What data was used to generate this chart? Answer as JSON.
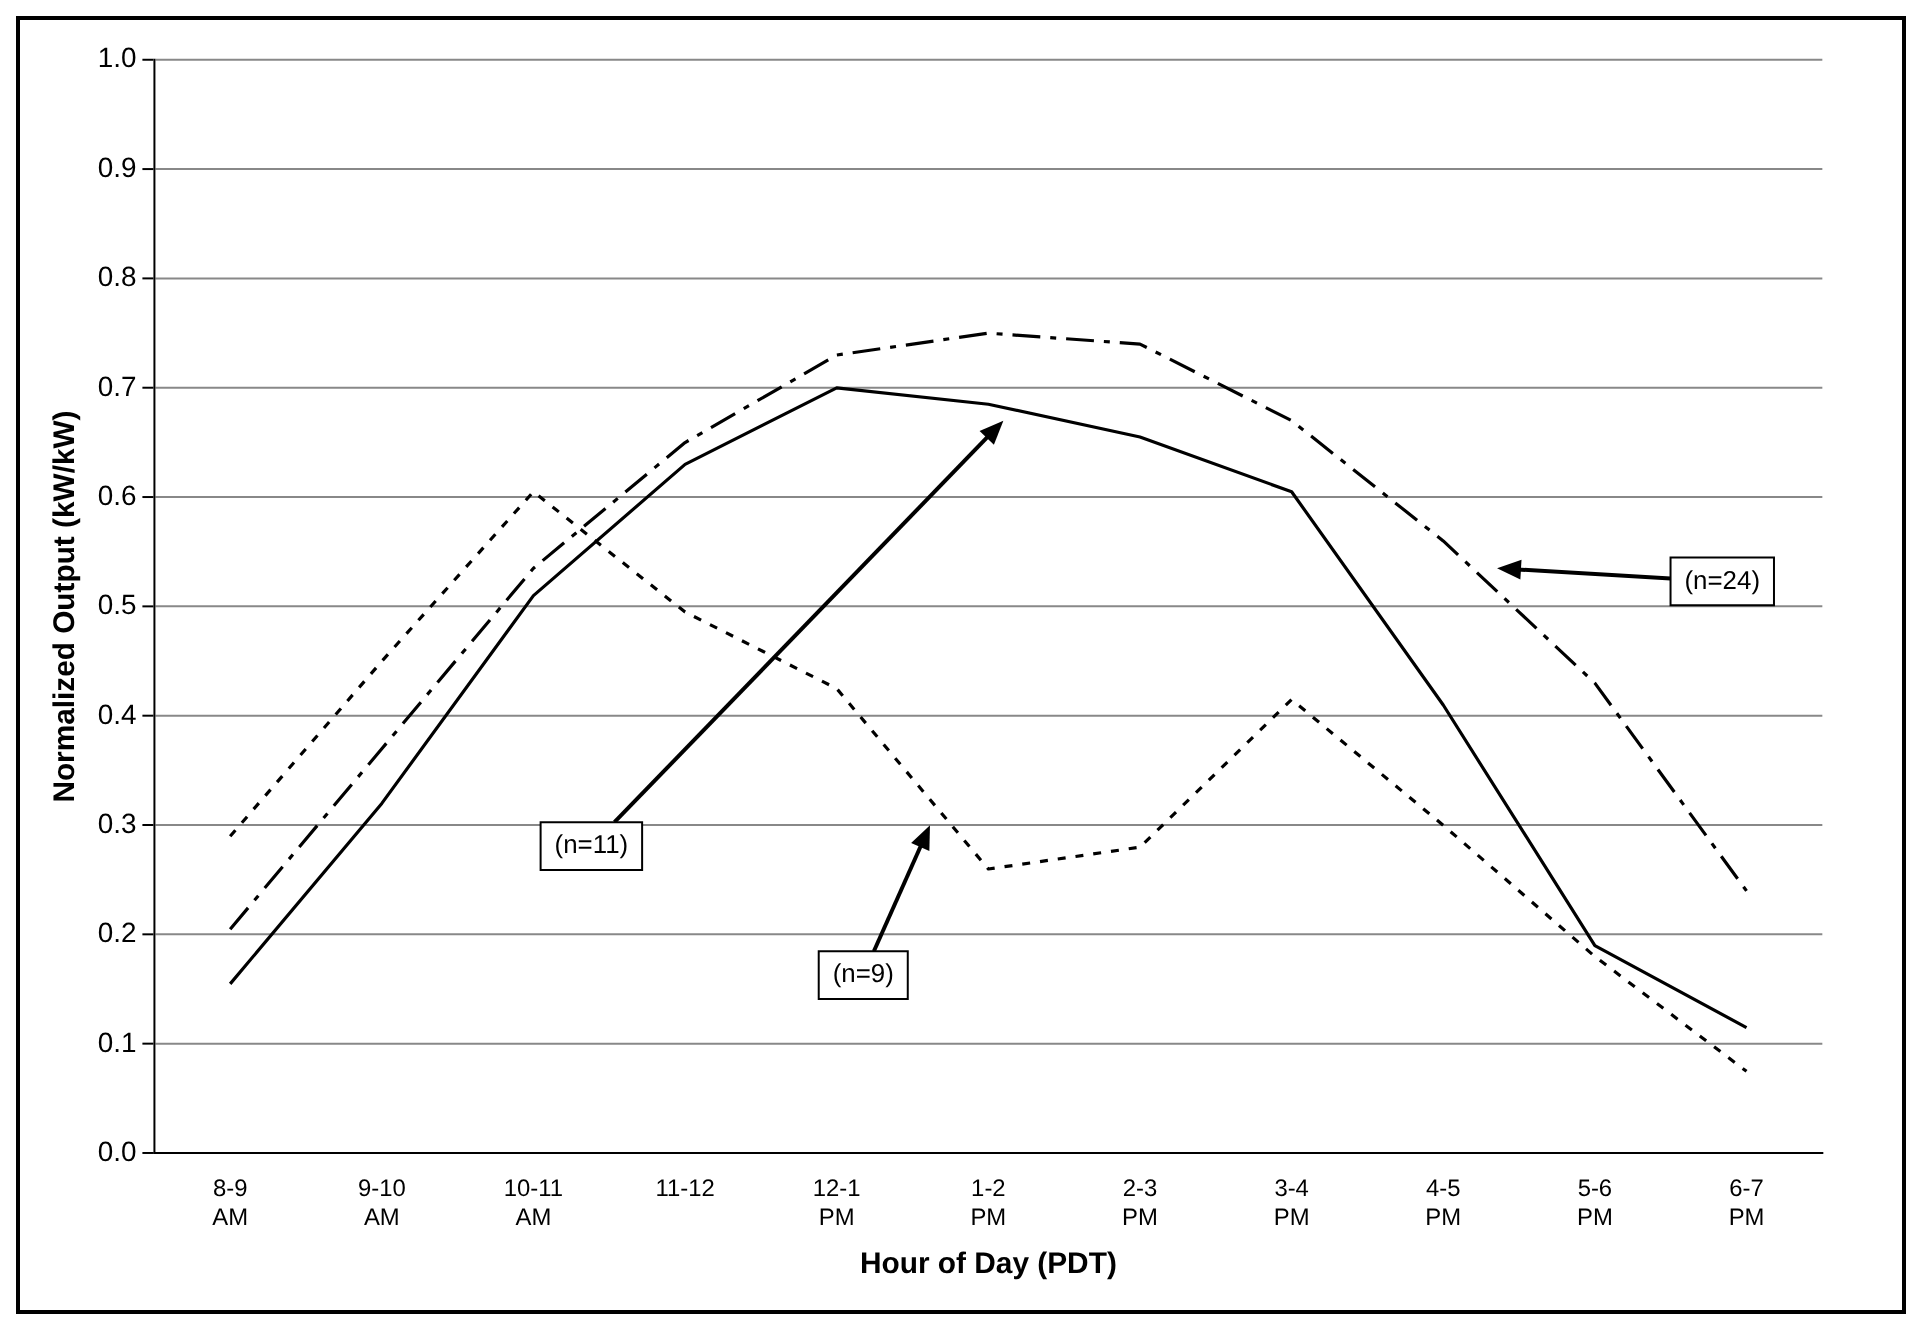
{
  "chart_data": {
    "type": "line",
    "xlabel": "Hour of Day (PDT)",
    "ylabel": "Normalized Output (kW/kW)",
    "categories": [
      "8-9 AM",
      "9-10 AM",
      "10-11 AM",
      "11-12",
      "12-1 PM",
      "1-2 PM",
      "2-3 PM",
      "3-4 PM",
      "4-5 PM",
      "5-6 PM",
      "6-7 PM"
    ],
    "series": [
      {
        "color": "#000000",
        "line_style": "dashed",
        "values": [
          0.205,
          0.37,
          0.535,
          0.65,
          0.73,
          0.75,
          0.74,
          0.67,
          0.56,
          0.43,
          0.24
        ]
      },
      {
        "color": "#000000",
        "line_style": "solid",
        "values": [
          0.155,
          0.32,
          0.51,
          0.63,
          0.7,
          0.685,
          0.655,
          0.605,
          0.41,
          0.19,
          0.115
        ]
      },
      {
        "color": "#000000",
        "line_style": "dotted",
        "values": [
          0.29,
          0.45,
          0.605,
          0.495,
          0.425,
          0.26,
          0.28,
          0.415,
          0.3,
          0.18,
          0.075
        ]
      }
    ],
    "ylim": [
      0,
      1
    ],
    "yticks": [
      {
        "value": 0,
        "label": "0.0"
      },
      0.1,
      0.2,
      0.3,
      0.4,
      0.5,
      0.6,
      0.7,
      0.8,
      0.9,
      {
        "value": 1,
        "label": "1.0"
      }
    ],
    "grid": "y",
    "legend": false,
    "marker": "none",
    "annotations": [
      "(n=24)",
      "(n=11)",
      "(n=9)"
    ]
  }
}
